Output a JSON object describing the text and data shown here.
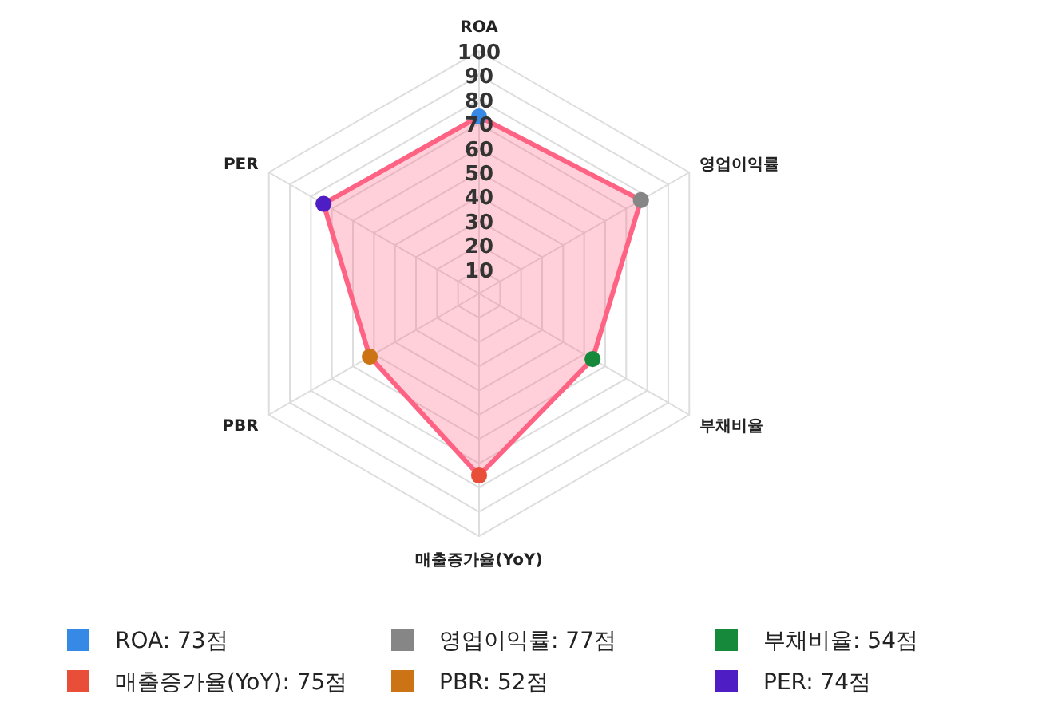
{
  "chart_data": {
    "type": "radar",
    "categories": [
      "ROA",
      "영업이익률",
      "부채비율",
      "매출증가율(YoY)",
      "PBR",
      "PER"
    ],
    "series": [
      {
        "color": "#ff6384",
        "values": [
          73,
          77,
          54,
          75,
          52,
          74
        ],
        "colors": [
          "#368ae6",
          "#868686",
          "#17893a",
          "#e84e38",
          "#cc7316",
          "#4e1dc4"
        ]
      }
    ],
    "annotations": [
      "ROA: 73점",
      "영업이익률: 77점",
      "부채비율: 54점",
      "매출증가율(YoY): 75점",
      "PBR: 52점",
      "PER: 74점"
    ],
    "ylim": [
      0,
      100
    ],
    "yticks": [
      10,
      20,
      30,
      40,
      50,
      60,
      70,
      80,
      90,
      100
    ],
    "grid": true,
    "marker": "circle"
  }
}
